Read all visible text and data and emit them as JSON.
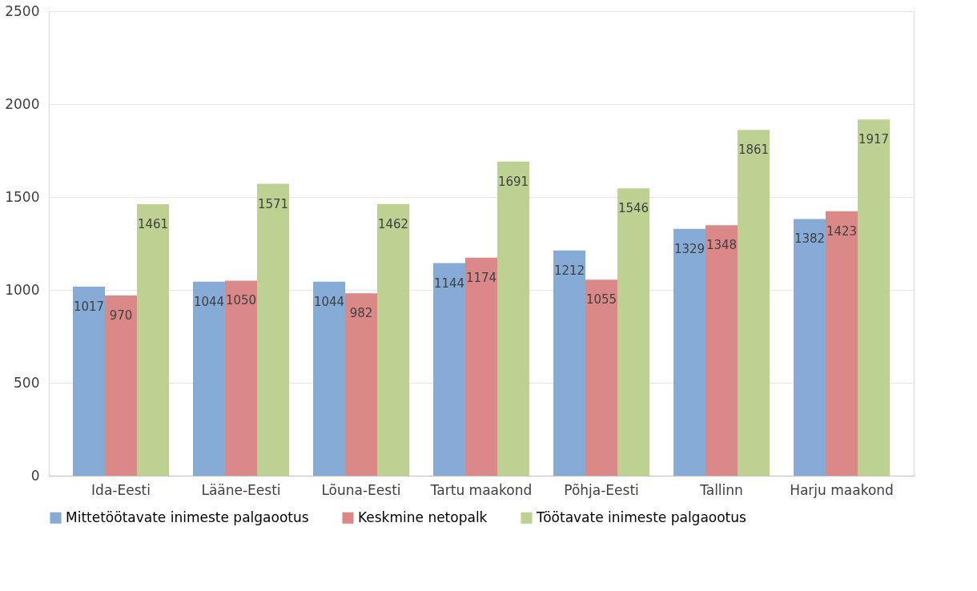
{
  "chart_data": {
    "type": "bar",
    "categories": [
      "Ida-Eesti",
      "Lääne-Eesti",
      "Lõuna-Eesti",
      "Tartu maakond",
      "Põhja-Eesti",
      "Tallinn",
      "Harju maakond"
    ],
    "series": [
      {
        "name": "Mittetöötavate inimeste palgaootus",
        "color": "#7fa6d4",
        "values": [
          1017,
          1044,
          1044,
          1144,
          1212,
          1329,
          1382
        ]
      },
      {
        "name": "Keskmine netopalk",
        "color": "#d98282",
        "values": [
          970,
          1050,
          982,
          1174,
          1055,
          1348,
          1423
        ]
      },
      {
        "name": "Töötavate inimeste palgaootus",
        "color": "#b9d08c",
        "values": [
          1461,
          1571,
          1462,
          1691,
          1546,
          1861,
          1917
        ]
      }
    ],
    "ylim": [
      0,
      2500
    ],
    "yticks": [
      0,
      500,
      1000,
      1500,
      2000,
      2500
    ],
    "grid": "y",
    "legend": "bottom",
    "data_labels": true
  }
}
